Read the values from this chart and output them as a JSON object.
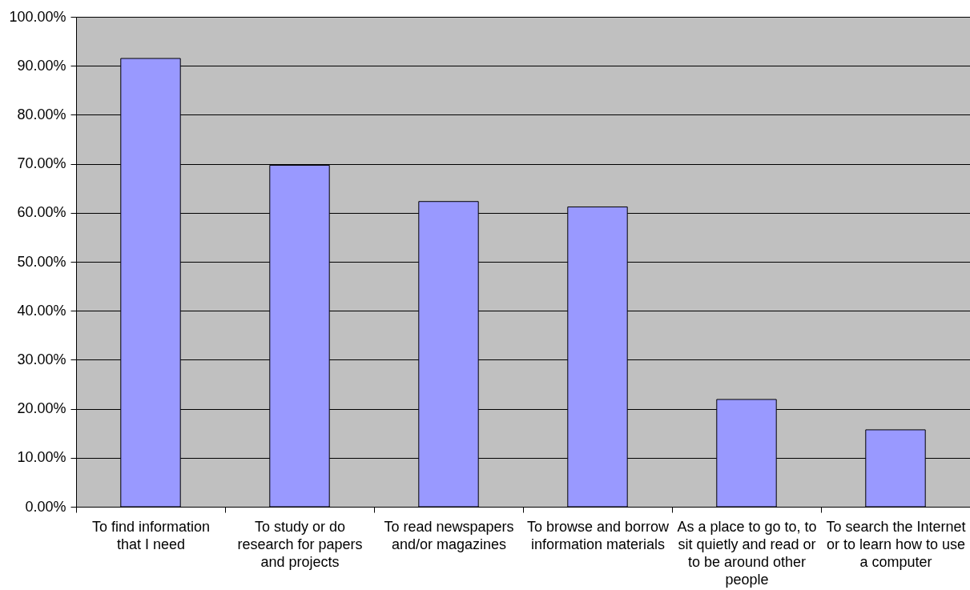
{
  "chart_data": {
    "type": "bar",
    "categories": [
      "To find information that I need",
      "To study or do research for papers and projects",
      "To read newspapers and/or magazines",
      "To browse and borrow information materials",
      "As a place to go to, to sit quietly and read or to be around other people",
      "To search the Internet or to learn how to use a computer"
    ],
    "values": [
      91.5,
      69.7,
      62.3,
      61.2,
      21.9,
      15.7
    ],
    "color": "#9999ff",
    "ylim": [
      0,
      100
    ],
    "yticks": [
      {
        "value": 0,
        "label": "0.00%"
      },
      {
        "value": 10,
        "label": "10.00%"
      },
      {
        "value": 20,
        "label": "20.00%"
      },
      {
        "value": 30,
        "label": "30.00%"
      },
      {
        "value": 40,
        "label": "40.00%"
      },
      {
        "value": 50,
        "label": "50.00%"
      },
      {
        "value": 60,
        "label": "60.00%"
      },
      {
        "value": 70,
        "label": "70.00%"
      },
      {
        "value": 80,
        "label": "80.00%"
      },
      {
        "value": 90,
        "label": "90.00%"
      },
      {
        "value": 100,
        "label": "100.00%"
      }
    ],
    "grid": "y"
  }
}
